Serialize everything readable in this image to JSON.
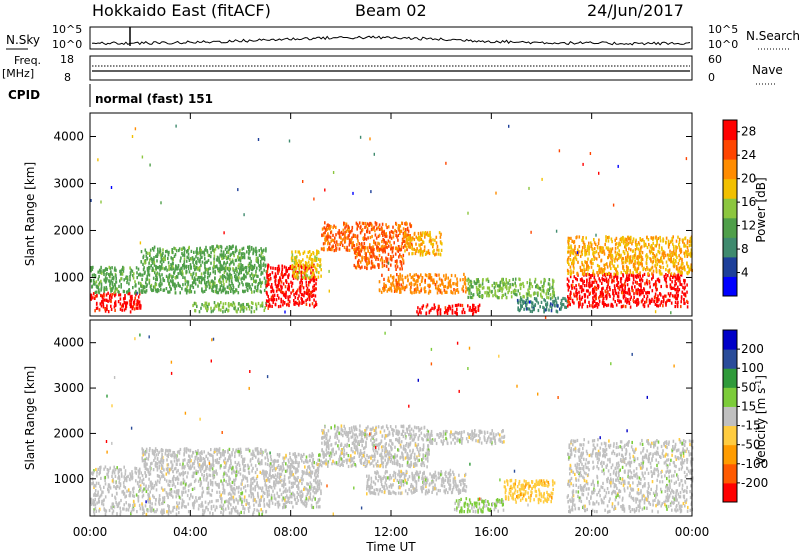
{
  "header": {
    "station": "Hokkaido East (fitACF)",
    "beam": "Beam 02",
    "date": "24/Jun/2017"
  },
  "panels": {
    "nsky_label": "N.Sky",
    "nsky_ticks": [
      "10^5",
      "10^0"
    ],
    "nsearch_label": "N.Search",
    "nsearch_ticks": [
      "10^5",
      "10^0"
    ],
    "freq_label": "Freq.",
    "freq_unit": "[MHz]",
    "freq_ticks": [
      "18",
      "8"
    ],
    "nave_label": "Nave",
    "nave_ticks": [
      "60",
      "0"
    ],
    "cpid_label": "CPID",
    "cpid_value": "normal (fast) 151"
  },
  "chart_data": [
    {
      "type": "heatmap",
      "name": "power",
      "ylabel": "Slant Range [km]",
      "xlim": [
        "00:00",
        "24:00"
      ],
      "ylim": [
        180,
        4500
      ],
      "yticks": [
        "1000",
        "2000",
        "3000",
        "4000"
      ],
      "colorbar": {
        "label": "Power [dB]",
        "range": [
          0,
          30
        ],
        "ticks": [
          "28",
          "24",
          "20",
          "16",
          "12",
          "8",
          "4"
        ],
        "colors": [
          "#0000ff",
          "#1d3f9a",
          "#3f8a6e",
          "#4f9f4a",
          "#8cc63f",
          "#f2c000",
          "#ff8c00",
          "#ff4500",
          "#ff0000"
        ]
      },
      "regions": [
        {
          "t0": 0.0,
          "t1": 2.0,
          "r0": 300,
          "r1": 700,
          "level": 28
        },
        {
          "t0": 0.0,
          "t1": 7.0,
          "r0": 700,
          "r1": 1250,
          "level": 12
        },
        {
          "t0": 2.0,
          "t1": 7.0,
          "r0": 1200,
          "r1": 1700,
          "level": 12
        },
        {
          "t0": 4.0,
          "t1": 7.0,
          "r0": 300,
          "r1": 500,
          "level": 14
        },
        {
          "t0": 7.0,
          "t1": 9.0,
          "r0": 400,
          "r1": 1300,
          "level": 28
        },
        {
          "t0": 8.0,
          "t1": 9.2,
          "r0": 1000,
          "r1": 1600,
          "level": 18
        },
        {
          "t0": 9.2,
          "t1": 12.8,
          "r0": 1600,
          "r1": 2200,
          "level": 24
        },
        {
          "t0": 10.5,
          "t1": 12.5,
          "r0": 1200,
          "r1": 1700,
          "level": 24
        },
        {
          "t0": 12.5,
          "t1": 14.0,
          "r0": 1500,
          "r1": 2000,
          "level": 20
        },
        {
          "t0": 11.5,
          "t1": 15.0,
          "r0": 700,
          "r1": 1100,
          "level": 22
        },
        {
          "t0": 13.0,
          "t1": 15.5,
          "r0": 250,
          "r1": 450,
          "level": 28
        },
        {
          "t0": 15.0,
          "t1": 18.5,
          "r0": 600,
          "r1": 1000,
          "level": 14
        },
        {
          "t0": 17.0,
          "t1": 19.0,
          "r0": 300,
          "r1": 600,
          "level": 8
        },
        {
          "t0": 19.0,
          "t1": 23.8,
          "r0": 400,
          "r1": 1100,
          "level": 28
        },
        {
          "t0": 19.0,
          "t1": 24.0,
          "r0": 1100,
          "r1": 1900,
          "level": 20
        }
      ]
    },
    {
      "type": "heatmap",
      "name": "velocity",
      "ylabel": "Slant Range [km]",
      "xlabel": "Time UT",
      "xticks": [
        "00:00",
        "04:00",
        "08:00",
        "12:00",
        "16:00",
        "20:00",
        "00:00"
      ],
      "ylim": [
        180,
        4500
      ],
      "yticks": [
        "1000",
        "2000",
        "3000",
        "4000"
      ],
      "colorbar": {
        "label": "Velocity [m s^-1]",
        "range": [
          -250,
          250
        ],
        "ticks": [
          "200",
          "100",
          "50",
          "15",
          "-15",
          "-50",
          "-100",
          "-200"
        ],
        "colors": [
          "#ff0000",
          "#ff5a00",
          "#ff9c00",
          "#ffcc40",
          "#c0c0c0",
          "#7ccc3a",
          "#2f9a3a",
          "#2a4c9a",
          "#0000c8"
        ]
      },
      "regions": [
        {
          "t0": 0.0,
          "t1": 7.0,
          "r0": 250,
          "r1": 1300,
          "level": 0
        },
        {
          "t0": 2.0,
          "t1": 7.0,
          "r0": 1300,
          "r1": 1700,
          "level": 0
        },
        {
          "t0": 7.0,
          "t1": 9.2,
          "r0": 400,
          "r1": 1600,
          "level": 0
        },
        {
          "t0": 9.2,
          "t1": 13.5,
          "r0": 1300,
          "r1": 2200,
          "level": 0
        },
        {
          "t0": 11.0,
          "t1": 15.0,
          "r0": 700,
          "r1": 1200,
          "level": 0
        },
        {
          "t0": 13.5,
          "t1": 16.5,
          "r0": 1800,
          "r1": 2100,
          "level": 0
        },
        {
          "t0": 14.5,
          "t1": 16.5,
          "r0": 300,
          "r1": 600,
          "level": 40
        },
        {
          "t0": 16.5,
          "t1": 18.5,
          "r0": 500,
          "r1": 1000,
          "level": -60
        },
        {
          "t0": 19.0,
          "t1": 24.0,
          "r0": 300,
          "r1": 1900,
          "level": 0
        }
      ]
    }
  ]
}
